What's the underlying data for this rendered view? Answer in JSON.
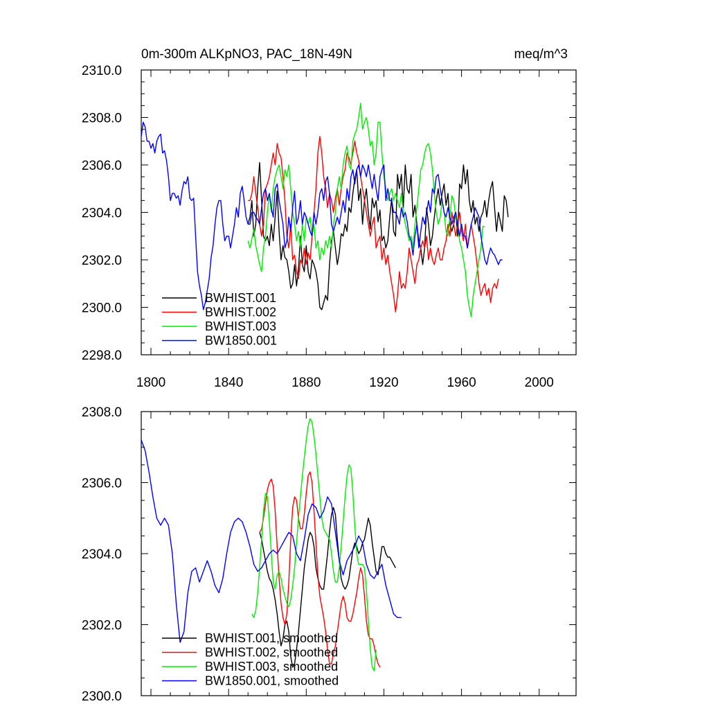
{
  "header": {
    "title": "0m-300m ALKpNO3, PAC_18N-49N",
    "units": "meq/m^3"
  },
  "chart_data": [
    {
      "type": "line",
      "title": "0m-300m ALKpNO3, PAC_18N-49N",
      "units": "meq/m^3",
      "xlim": [
        1795,
        2019
      ],
      "ylim": [
        2298,
        2310
      ],
      "xticks": [
        1800,
        1840,
        1880,
        1920,
        1960,
        2000
      ],
      "xtick_labels": [
        "1800",
        "1840",
        "1880",
        "1920",
        "1960",
        "2000"
      ],
      "yticks": [
        2298,
        2300,
        2302,
        2304,
        2306,
        2308,
        2310
      ],
      "ytick_labels": [
        "2298.0",
        "2300.0",
        "2302.0",
        "2304.0",
        "2306.0",
        "2308.0",
        "2310.0"
      ],
      "legend_position": "bottom-left",
      "series": [
        {
          "name": "BWHIST.001",
          "color": "#000000",
          "x_start": 1850,
          "step": 1,
          "values": [
            2303.5,
            2303.8,
            2304.5,
            2303.0,
            2303.5,
            2305.0,
            2306.1,
            2304.5,
            2303.0,
            2302.8,
            2303.0,
            2302.6,
            2303.5,
            2302.8,
            2303.8,
            2304.9,
            2303.2,
            2302.0,
            2302.6,
            2302.1,
            2302.0,
            2301.5,
            2300.8,
            2301.0,
            2301.8,
            2300.9,
            2301.6,
            2303.0,
            2301.8,
            2301.5,
            2302.6,
            2301.5,
            2301.2,
            2302.0,
            2301.8,
            2301.5,
            2301.0,
            2300.0,
            2299.9,
            2300.2,
            2300.5,
            2300.3,
            2301.8,
            2302.8,
            2303.2,
            2302.5,
            2301.8,
            2302.3,
            2303.1,
            2303.0,
            2303.5,
            2303.2,
            2304.2,
            2304.0,
            2304.8,
            2305.4,
            2305.8,
            2304.5,
            2305.0,
            2303.5,
            2304.5,
            2305.0,
            2304.0,
            2303.3,
            2304.6,
            2304.2,
            2304.5,
            2303.6,
            2304.1,
            2302.8,
            2303.0,
            2302.5,
            2302.8,
            2303.8,
            2304.6,
            2303.2,
            2303.0,
            2305.6,
            2305.0,
            2305.6,
            2304.2,
            2306.0,
            2305.0,
            2304.8,
            2305.6,
            2303.8,
            2304.3,
            2303.5,
            2302.8,
            2302.5,
            2301.8,
            2302.5,
            2304.2,
            2303.5,
            2302.6,
            2303.0,
            2303.8,
            2304.5,
            2305.0,
            2304.3,
            2304.8,
            2305.2,
            2304.3,
            2304.8,
            2303.5,
            2303.2,
            2303.5,
            2304.0,
            2303.0,
            2305.2,
            2305.0,
            2306.0,
            2305.2,
            2305.8,
            2304.5,
            2304.0,
            2304.5,
            2303.5,
            2303.8,
            2303.2,
            2303.8,
            2304.0,
            2304.5,
            2303.8,
            2304.5,
            2305.0,
            2305.3,
            2304.2,
            2303.2,
            2304.0,
            2303.6,
            2303.2,
            2304.7,
            2304.5,
            2303.8
          ]
        },
        {
          "name": "BWHIST.002",
          "color": "#ff0000",
          "x_start": 1850,
          "step": 1,
          "values": [
            2304.5,
            2304.5,
            2304.8,
            2305.5,
            2304.8,
            2304.2,
            2303.5,
            2303.0,
            2303.5,
            2305.0,
            2305.2,
            2305.5,
            2306.0,
            2306.5,
            2306.0,
            2306.9,
            2306.5,
            2306.3,
            2305.5,
            2304.5,
            2303.0,
            2302.5,
            2303.5,
            2302.0,
            2302.2,
            2301.5,
            2301.2,
            2302.0,
            2301.8,
            2302.5,
            2301.8,
            2302.3,
            2302.0,
            2303.0,
            2304.0,
            2305.0,
            2306.5,
            2307.2,
            2306.5,
            2305.5,
            2305.0,
            2304.2,
            2304.8,
            2304.5,
            2304.0,
            2304.6,
            2305.0,
            2304.3,
            2305.0,
            2305.5,
            2305.8,
            2306.5,
            2306.3,
            2306.0,
            2306.5,
            2307.0,
            2306.5,
            2306.2,
            2305.5,
            2305.0,
            2304.5,
            2304.0,
            2303.5,
            2303.0,
            2303.5,
            2303.8,
            2302.5,
            2302.8,
            2303.0,
            2302.0,
            2302.5,
            2301.8,
            2302.2,
            2301.5,
            2301.0,
            2300.5,
            2299.8,
            2300.5,
            2301.5,
            2300.8,
            2301.0,
            2300.8,
            2301.5,
            2302.5,
            2302.0,
            2301.5,
            2301.0,
            2301.8,
            2302.0,
            2302.5,
            2302.8,
            2302.5,
            2303.0,
            2302.0,
            2302.5,
            2302.0,
            2301.8,
            2302.2,
            2302.5,
            2302.0,
            2302.0,
            2302.5,
            2302.8,
            2303.5,
            2303.0,
            2304.0,
            2303.5,
            2303.0,
            2303.5,
            2304.0,
            2303.2,
            2302.8,
            2303.5,
            2302.5,
            2303.0,
            2303.5,
            2303.0,
            2302.5,
            2301.8,
            2301.0,
            2300.5,
            2300.8,
            2301.0,
            2300.5,
            2300.8,
            2300.2,
            2300.8,
            2301.0,
            2300.8,
            2301.2
          ]
        },
        {
          "name": "BWHIST.003",
          "color": "#00ee00",
          "x_start": 1850,
          "step": 1,
          "values": [
            2302.8,
            2302.5,
            2302.9,
            2303.3,
            2302.6,
            2302.2,
            2301.8,
            2301.5,
            2302.5,
            2303.0,
            2304.0,
            2304.8,
            2304.0,
            2305.0,
            2305.5,
            2305.8,
            2306.0,
            2305.5,
            2305.0,
            2305.8,
            2305.5,
            2306.0,
            2305.0,
            2304.0,
            2303.5,
            2302.8,
            2303.2,
            2302.5,
            2303.5,
            2302.8,
            2303.8,
            2303.5,
            2303.8,
            2303.0,
            2303.5,
            2302.5,
            2302.8,
            2302.0,
            2302.5,
            2302.2,
            2302.8,
            2302.5,
            2303.0,
            2302.5,
            2303.5,
            2304.0,
            2305.0,
            2305.5,
            2305.0,
            2306.0,
            2306.5,
            2306.8,
            2306.0,
            2305.8,
            2307.0,
            2307.3,
            2307.5,
            2308.0,
            2308.6,
            2307.5,
            2307.8,
            2308.0,
            2307.5,
            2306.8,
            2307.0,
            2306.0,
            2306.5,
            2307.8,
            2307.8,
            2306.5,
            2305.5,
            2305.0,
            2304.5,
            2304.8,
            2305.0,
            2304.5,
            2304.8,
            2304.5,
            2304.2,
            2304.8,
            2304.0,
            2303.5,
            2303.2,
            2302.8,
            2303.0,
            2302.5,
            2303.5,
            2304.2,
            2305.0,
            2305.8,
            2306.0,
            2306.5,
            2306.8,
            2306.9,
            2306.5,
            2305.8,
            2304.8,
            2304.0,
            2303.5,
            2303.8,
            2304.5,
            2304.0,
            2303.2,
            2303.0,
            2303.8,
            2304.7,
            2304.5,
            2303.8,
            2303.5,
            2302.8,
            2302.5,
            2302.0,
            2301.5,
            2300.5,
            2300.0,
            2299.6,
            2300.5,
            2301.0,
            2301.5,
            2302.0,
            2302.5,
            2303.4,
            2303.4
          ]
        },
        {
          "name": "BW1850.001",
          "color": "#0000ff",
          "x_start": 1795,
          "step": 1,
          "values": [
            2307.2,
            2307.8,
            2307.6,
            2307.0,
            2307.0,
            2306.7,
            2306.9,
            2306.5,
            2307.0,
            2307.2,
            2307.3,
            2306.5,
            2306.6,
            2306.2,
            2305.5,
            2304.5,
            2304.8,
            2304.8,
            2304.6,
            2304.7,
            2304.3,
            2304.9,
            2305.3,
            2305.2,
            2305.5,
            2304.6,
            2304.5,
            2304.6,
            2303.0,
            2301.5,
            2300.9,
            2300.5,
            2299.9,
            2300.2,
            2300.7,
            2301.2,
            2302.1,
            2302.6,
            2303.5,
            2304.2,
            2304.5,
            2304.5,
            2303.5,
            2302.8,
            2303.0,
            2303.0,
            2302.5,
            2303.0,
            2303.5,
            2304.2,
            2303.8,
            2304.8,
            2305.1,
            2304.5,
            2303.8,
            2303.5,
            2303.5,
            2304.0,
            2304.0,
            2303.8,
            2303.7,
            2303.5,
            2304.2,
            2304.8,
            2305.0,
            2304.5,
            2304.8,
            2304.2,
            2303.8,
            2305.0,
            2305.2,
            2304.5,
            2304.0,
            2303.5,
            2302.5,
            2302.8,
            2303.8,
            2303.2,
            2304.2,
            2304.9,
            2303.5,
            2303.8,
            2304.5,
            2303.5,
            2304.0,
            2303.8,
            2303.5,
            2303.2,
            2303.0,
            2304.0,
            2303.5,
            2304.0,
            2304.8,
            2305.0,
            2304.5,
            2305.3,
            2305.5,
            2304.8,
            2303.5,
            2303.2,
            2303.5,
            2303.8,
            2303.5,
            2304.0,
            2304.5,
            2304.0,
            2305.0,
            2304.5,
            2305.5,
            2305.8,
            2305.2,
            2305.8,
            2306.0,
            2305.5,
            2306.0,
            2305.8,
            2305.5,
            2306.0,
            2305.5,
            2305.0,
            2305.6,
            2305.0,
            2304.5,
            2305.5,
            2305.8,
            2306.0,
            2304.5,
            2305.0,
            2304.5,
            2304.5,
            2304.0,
            2304.0,
            2303.8,
            2303.5,
            2304.2,
            2303.8,
            2304.0,
            2303.6,
            2303.0,
            2302.8,
            2302.2,
            2303.0,
            2303.5,
            2302.5,
            2303.2,
            2303.8,
            2303.5,
            2304.0,
            2304.5,
            2304.0,
            2305.0,
            2304.8,
            2305.5,
            2305.6,
            2305.0,
            2304.5,
            2304.0,
            2303.8,
            2304.2,
            2303.8,
            2303.5,
            2303.8,
            2304.0,
            2303.5,
            2303.0,
            2303.5,
            2303.0,
            2303.0,
            2302.5,
            2303.0,
            2303.5,
            2303.8,
            2304.2,
            2304.0,
            2303.8,
            2303.0,
            2302.5,
            2302.0,
            2301.8,
            2302.2,
            2302.5,
            2302.3,
            2302.2,
            2302.0,
            2301.8,
            2302.0,
            2302.0
          ]
        }
      ]
    },
    {
      "type": "line",
      "xlim": [
        1795,
        2019
      ],
      "ylim": [
        2300,
        2308
      ],
      "xticks": [
        1800,
        1840,
        1880,
        1920,
        1960,
        2000
      ],
      "yticks": [
        2300,
        2302,
        2304,
        2306,
        2308
      ],
      "ytick_labels": [
        "2300.0",
        "2302.0",
        "2304.0",
        "2306.0",
        "2308.0"
      ],
      "legend_position": "bottom-left",
      "series": [
        {
          "name": "BWHIST.001, smoothed",
          "color": "#000000",
          "x_start": 1856,
          "step": 1,
          "values": [
            2304.6,
            2304.4,
            2304.1,
            2303.8,
            2303.5,
            2303.3,
            2303.2,
            2303.0,
            2302.7,
            2302.3,
            2301.8,
            2301.4,
            2301.6,
            2302.0,
            2302.1,
            2301.8,
            2301.1,
            2300.8,
            2300.9,
            2301.3,
            2301.8,
            2302.4,
            2303.0,
            2303.6,
            2304.0,
            2304.4,
            2304.6,
            2304.5,
            2304.2,
            2303.6,
            2303.3,
            2303.1,
            2303.0,
            2303.0,
            2303.5,
            2304.0,
            2304.6,
            2305.1,
            2305.3,
            2305.1,
            2304.4,
            2303.8,
            2303.3,
            2303.1,
            2303.0,
            2303.1,
            2303.3,
            2303.7,
            2304.1,
            2304.3,
            2304.2,
            2304.0,
            2304.1,
            2304.3,
            2304.4,
            2304.7,
            2305.0,
            2304.8,
            2304.3,
            2303.9,
            2303.5,
            2303.4,
            2303.8,
            2304.2,
            2304.2,
            2304.0,
            2303.9,
            2303.9,
            2303.8,
            2303.7,
            2303.6
          ]
        },
        {
          "name": "BWHIST.002, smoothed",
          "color": "#ff0000",
          "x_start": 1856,
          "step": 1,
          "values": [
            2304.6,
            2304.7,
            2305.0,
            2305.4,
            2305.8,
            2306.0,
            2306.1,
            2305.9,
            2305.2,
            2304.2,
            2303.3,
            2302.6,
            2302.2,
            2302.0,
            2302.3,
            2303.2,
            2304.4,
            2305.3,
            2305.6,
            2305.5,
            2305.0,
            2304.7,
            2304.7,
            2305.1,
            2305.7,
            2306.2,
            2306.3,
            2306.0,
            2305.2,
            2304.3,
            2303.4,
            2302.8,
            2302.5,
            2302.2,
            2301.8,
            2301.3,
            2300.9,
            2300.9,
            2301.2,
            2301.4,
            2301.8,
            2302.2,
            2302.6,
            2302.8,
            2302.6,
            2302.2,
            2302.1,
            2302.1,
            2302.3,
            2302.6,
            2302.9,
            2303.3,
            2303.6,
            2303.4,
            2302.8,
            2302.1,
            2301.7,
            2301.6,
            2301.6,
            2301.4,
            2301.1,
            2300.9,
            2300.8
          ]
        },
        {
          "name": "BWHIST.003, smoothed",
          "color": "#00ee00",
          "x_start": 1852,
          "step": 1,
          "values": [
            2302.3,
            2302.2,
            2302.4,
            2302.9,
            2303.6,
            2304.4,
            2305.2,
            2305.7,
            2305.6,
            2304.9,
            2304.0,
            2303.2,
            2303.0,
            2303.4,
            2303.5,
            2303.3,
            2303.0,
            2302.8,
            2302.6,
            2302.5,
            2302.7,
            2303.1,
            2303.6,
            2304.3,
            2305.0,
            2305.6,
            2306.2,
            2306.7,
            2307.2,
            2307.6,
            2307.8,
            2307.7,
            2307.3,
            2306.8,
            2306.2,
            2305.6,
            2305.0,
            2304.7,
            2304.6,
            2304.5,
            2304.4,
            2304.0,
            2303.5,
            2303.2,
            2303.2,
            2303.6,
            2304.2,
            2304.9,
            2305.6,
            2306.2,
            2306.5,
            2306.4,
            2305.7,
            2304.8,
            2304.0,
            2303.7,
            2303.7,
            2303.7,
            2303.6,
            2303.0,
            2302.1,
            2301.3,
            2300.8,
            2300.7,
            2301.3
          ]
        },
        {
          "name": "BW1850.001, smoothed",
          "color": "#0000ff",
          "x_start": 1795,
          "step": 2,
          "values": [
            2307.2,
            2306.9,
            2306.3,
            2305.6,
            2305.0,
            2304.8,
            2305.0,
            2304.8,
            2304.0,
            2302.6,
            2301.5,
            2301.8,
            2302.9,
            2303.5,
            2303.6,
            2303.2,
            2303.5,
            2303.8,
            2303.5,
            2303.1,
            2302.9,
            2303.3,
            2304.0,
            2304.6,
            2304.9,
            2305.0,
            2304.9,
            2304.6,
            2304.2,
            2303.7,
            2303.5,
            2303.6,
            2303.8,
            2304.0,
            2304.1,
            2304.0,
            2304.2,
            2304.4,
            2304.6,
            2304.5,
            2304.0,
            2303.8,
            2304.4,
            2305.1,
            2305.4,
            2305.3,
            2305.0,
            2305.2,
            2305.6,
            2305.4,
            2304.6,
            2303.8,
            2303.4,
            2303.8,
            2304.0,
            2304.2,
            2304.5,
            2304.3,
            2303.7,
            2303.4,
            2303.3,
            2303.5,
            2303.7,
            2303.1,
            2302.7,
            2302.3,
            2302.2,
            2302.2
          ]
        }
      ]
    }
  ]
}
